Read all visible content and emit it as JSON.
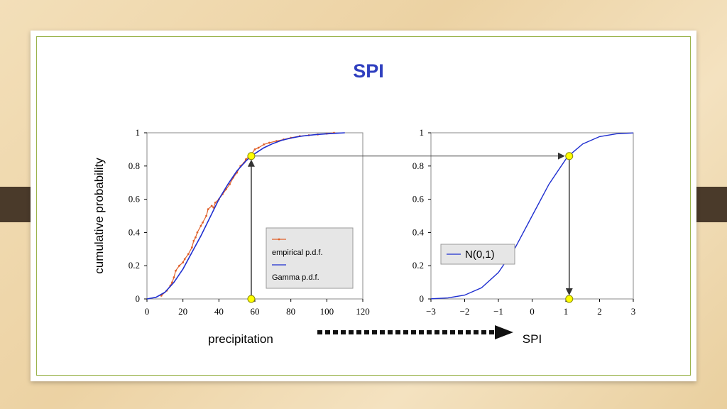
{
  "slide": {
    "title": "SPI"
  },
  "colors": {
    "title": "#2f3fbf",
    "gamma_curve": "#1f2fd0",
    "empirical_curve": "#e0602a",
    "marker": "#ffff00",
    "slide_border": "#9ab34b",
    "side_tab": "#4a3a2a"
  },
  "chart_data": [
    {
      "type": "line",
      "xlabel": "precipitation",
      "ylabel": "cumulative probability",
      "xlim": [
        0,
        120
      ],
      "ylim": [
        0,
        1
      ],
      "xticks": [
        "0",
        "20",
        "40",
        "60",
        "80",
        "100",
        "120"
      ],
      "yticks": [
        "0",
        "0.2",
        "0.4",
        "0.6",
        "0.8",
        "1"
      ],
      "grid": false,
      "legend": {
        "placement": "bottom-right",
        "entries": [
          "empirical p.d.f.",
          "Gamma p.d.f."
        ]
      },
      "series": [
        {
          "name": "empirical p.d.f.",
          "x": [
            8,
            11,
            13,
            14,
            15,
            16,
            18,
            20,
            21,
            23,
            25,
            26,
            27,
            28,
            30,
            31,
            33,
            34,
            36,
            37,
            38,
            40,
            42,
            44,
            46,
            48,
            50,
            52,
            54,
            55,
            57,
            58,
            60,
            62,
            65,
            68,
            72,
            76,
            80,
            85,
            90,
            95,
            100,
            104
          ],
          "y": [
            0.02,
            0.05,
            0.08,
            0.1,
            0.13,
            0.17,
            0.2,
            0.22,
            0.24,
            0.27,
            0.31,
            0.35,
            0.37,
            0.4,
            0.44,
            0.46,
            0.5,
            0.54,
            0.56,
            0.55,
            0.58,
            0.6,
            0.63,
            0.66,
            0.69,
            0.73,
            0.76,
            0.8,
            0.82,
            0.84,
            0.86,
            0.87,
            0.9,
            0.91,
            0.93,
            0.94,
            0.95,
            0.96,
            0.97,
            0.98,
            0.985,
            0.99,
            0.995,
            1.0
          ]
        },
        {
          "name": "Gamma p.d.f.",
          "x": [
            0,
            5,
            10,
            15,
            20,
            25,
            30,
            35,
            40,
            45,
            50,
            55,
            58,
            60,
            65,
            70,
            75,
            80,
            85,
            90,
            95,
            100,
            105,
            110
          ],
          "y": [
            0,
            0.01,
            0.04,
            0.1,
            0.18,
            0.28,
            0.38,
            0.49,
            0.6,
            0.69,
            0.77,
            0.83,
            0.86,
            0.875,
            0.91,
            0.935,
            0.955,
            0.968,
            0.978,
            0.985,
            0.99,
            0.994,
            0.997,
            1.0
          ]
        }
      ],
      "annotations": [
        {
          "kind": "point",
          "x": 58,
          "y": 0
        },
        {
          "kind": "point",
          "x": 58,
          "y": 0.86
        },
        {
          "kind": "arrow",
          "from": [
            58,
            0
          ],
          "to": [
            58,
            0.86
          ]
        }
      ]
    },
    {
      "type": "line",
      "xlabel": "SPI",
      "ylabel": "",
      "xlim": [
        -3,
        3
      ],
      "ylim": [
        0,
        1
      ],
      "xticks": [
        "−3",
        "−2",
        "−1",
        "0",
        "1",
        "2",
        "3"
      ],
      "yticks": [
        "0",
        "0.2",
        "0.4",
        "0.6",
        "0.8",
        "1"
      ],
      "grid": false,
      "legend": {
        "placement": "middle-left",
        "entries": [
          "N(0,1)"
        ]
      },
      "series": [
        {
          "name": "N(0,1)",
          "x": [
            -3,
            -2.5,
            -2,
            -1.5,
            -1,
            -0.5,
            0,
            0.5,
            1,
            1.1,
            1.5,
            2,
            2.5,
            3
          ],
          "y": [
            0.001,
            0.006,
            0.023,
            0.067,
            0.159,
            0.309,
            0.5,
            0.691,
            0.841,
            0.864,
            0.933,
            0.977,
            0.994,
            0.999
          ]
        }
      ],
      "annotations": [
        {
          "kind": "point",
          "x": 1.1,
          "y": 0.86
        },
        {
          "kind": "point",
          "x": 1.1,
          "y": 0
        },
        {
          "kind": "arrow",
          "from": [
            1.1,
            0.86
          ],
          "to": [
            1.1,
            0
          ]
        }
      ]
    }
  ]
}
